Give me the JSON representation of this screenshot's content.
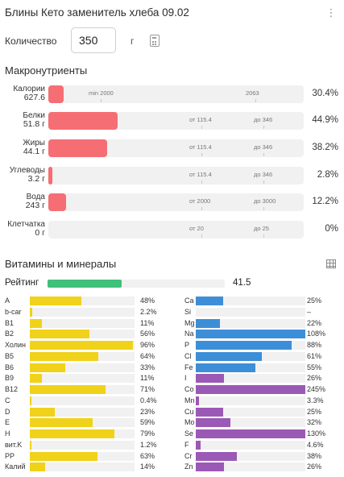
{
  "header": {
    "title": "Блины Кето заменитель хлеба 09.02",
    "menu_icon": "kebab-menu-icon"
  },
  "quantity": {
    "label": "Количество",
    "value": "350",
    "unit": "г",
    "calc_icon": "calculator-icon"
  },
  "macros": {
    "title": "Макронутриенты",
    "rows": [
      {
        "name": "Калории",
        "amount": "627.6",
        "left_hint": "min 2000",
        "right_hint": "2063",
        "pct": "30.4%",
        "fill": 0.06
      },
      {
        "name": "Белки",
        "amount": "51.8 г",
        "left_hint": "от 115.4",
        "right_hint": "до 346",
        "pct": "44.9%",
        "fill": 0.27
      },
      {
        "name": "Жиры",
        "amount": "44.1 г",
        "left_hint": "от 115.4",
        "right_hint": "до 346",
        "pct": "38.2%",
        "fill": 0.23
      },
      {
        "name": "Углеводы",
        "amount": "3.2 г",
        "left_hint": "от 115.4",
        "right_hint": "до 346",
        "pct": "2.8%",
        "fill": 0.015
      },
      {
        "name": "Вода",
        "amount": "243 г",
        "left_hint": "от 2000",
        "right_hint": "до 3000",
        "pct": "12.2%",
        "fill": 0.07
      },
      {
        "name": "Клетчатка",
        "amount": "0 г",
        "left_hint": "от 20",
        "right_hint": "до 25",
        "pct": "0%",
        "fill": 0
      }
    ]
  },
  "vitamins": {
    "title": "Витамины и минералы",
    "table_icon": "table-grid-icon",
    "rating": {
      "label": "Рейтинг",
      "value": "41.5",
      "fraction": 0.42
    },
    "left": [
      {
        "name": "A",
        "pct": "48%",
        "value": 48
      },
      {
        "name": "b-car",
        "pct": "2.2%",
        "value": 2.2
      },
      {
        "name": "B1",
        "pct": "11%",
        "value": 11
      },
      {
        "name": "B2",
        "pct": "56%",
        "value": 56
      },
      {
        "name": "Холин",
        "pct": "96%",
        "value": 96
      },
      {
        "name": "B5",
        "pct": "64%",
        "value": 64
      },
      {
        "name": "B6",
        "pct": "33%",
        "value": 33
      },
      {
        "name": "B9",
        "pct": "11%",
        "value": 11
      },
      {
        "name": "B12",
        "pct": "71%",
        "value": 71
      },
      {
        "name": "C",
        "pct": "0.4%",
        "value": 0.4
      },
      {
        "name": "D",
        "pct": "23%",
        "value": 23
      },
      {
        "name": "E",
        "pct": "59%",
        "value": 59
      },
      {
        "name": "H",
        "pct": "79%",
        "value": 79
      },
      {
        "name": "вит.K",
        "pct": "1.2%",
        "value": 1.2
      },
      {
        "name": "PP",
        "pct": "63%",
        "value": 63
      },
      {
        "name": "Калий",
        "pct": "14%",
        "value": 14
      }
    ],
    "right": [
      {
        "name": "Ca",
        "pct": "25%",
        "value": 25
      },
      {
        "name": "Si",
        "pct": "–",
        "value": 0
      },
      {
        "name": "Mg",
        "pct": "22%",
        "value": 22
      },
      {
        "name": "Na",
        "pct": "108%",
        "value": 108
      },
      {
        "name": "P",
        "pct": "88%",
        "value": 88
      },
      {
        "name": "Cl",
        "pct": "61%",
        "value": 61
      },
      {
        "name": "Fe",
        "pct": "55%",
        "value": 55
      },
      {
        "name": "I",
        "pct": "26%",
        "value": 26
      },
      {
        "name": "Co",
        "pct": "245%",
        "value": 245
      },
      {
        "name": "Mn",
        "pct": "3.3%",
        "value": 3.3
      },
      {
        "name": "Cu",
        "pct": "25%",
        "value": 25
      },
      {
        "name": "Mo",
        "pct": "32%",
        "value": 32
      },
      {
        "name": "Se",
        "pct": "130%",
        "value": 130
      },
      {
        "name": "F",
        "pct": "4.6%",
        "value": 4.6
      },
      {
        "name": "Cr",
        "pct": "38%",
        "value": 38
      },
      {
        "name": "Zn",
        "pct": "26%",
        "value": 26
      }
    ]
  },
  "colors": {
    "macro": "#f56e73",
    "rating": "#3fc17a",
    "vitamin": "#f0d21a",
    "mineral_blue": "#3d8ed8",
    "mineral_purple": "#9b59b6",
    "track": "#f1f1f1"
  }
}
